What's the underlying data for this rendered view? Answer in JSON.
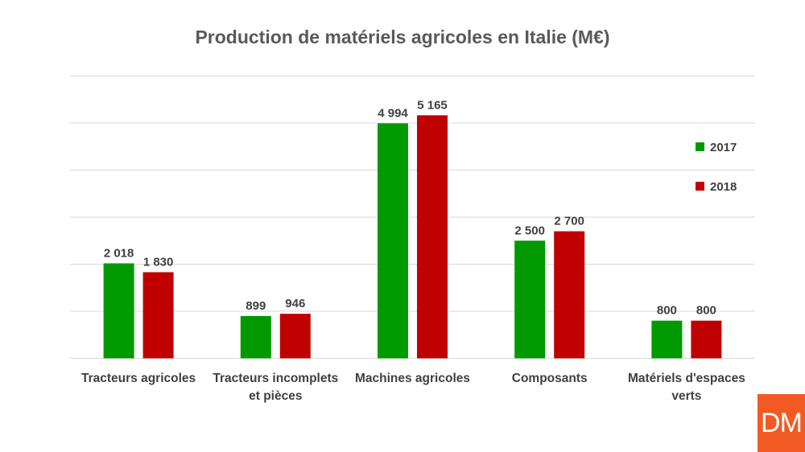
{
  "chart_data": {
    "type": "bar",
    "title": "Production de matériels agricoles en Italie (M€)",
    "categories": [
      [
        "Tracteurs agricoles"
      ],
      [
        "Tracteurs incomplets",
        "et pièces"
      ],
      [
        "Machines agricoles"
      ],
      [
        "Composants"
      ],
      [
        "Matériels d'espaces",
        "verts"
      ]
    ],
    "series": [
      {
        "name": "2017",
        "color": "#009900",
        "values": [
          2018,
          899,
          4994,
          2500,
          800
        ],
        "labels": [
          "2 018",
          "899",
          "4 994",
          "2 500",
          "800"
        ]
      },
      {
        "name": "2018",
        "color": "#c00000",
        "values": [
          1830,
          946,
          5165,
          2700,
          800
        ],
        "labels": [
          "1 830",
          "946",
          "5 165",
          "2 700",
          "800"
        ]
      }
    ],
    "ylim": [
      0,
      6000
    ],
    "ytick_step": 1000,
    "grid": true,
    "legend_position": "right",
    "xlabel": "",
    "ylabel": ""
  },
  "logo": {
    "text": "DM",
    "color": "#f15a22"
  }
}
